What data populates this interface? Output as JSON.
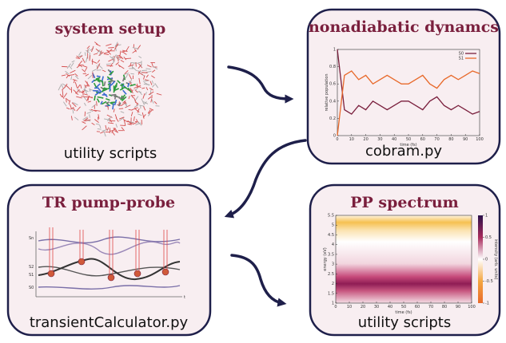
{
  "boxes": [
    {
      "title": "system setup",
      "caption": "utility scripts"
    },
    {
      "title": "nonadiabatic dynamcs",
      "caption": "cobram.py",
      "plot": {
        "type": "line",
        "x_label": "time (fs)",
        "y_label": "relative population",
        "x": [
          0,
          5,
          10,
          15,
          20,
          25,
          30,
          35,
          40,
          45,
          50,
          55,
          60,
          65,
          70,
          75,
          80,
          85,
          90,
          95,
          100
        ],
        "series": [
          {
            "name": "S0",
            "color": "#7a1f3d",
            "values": [
              1,
              0.3,
              0.25,
              0.35,
              0.3,
              0.4,
              0.35,
              0.3,
              0.35,
              0.4,
              0.4,
              0.35,
              0.3,
              0.4,
              0.45,
              0.35,
              0.3,
              0.35,
              0.3,
              0.25,
              0.28
            ]
          },
          {
            "name": "S1",
            "color": "#e8692a",
            "values": [
              0,
              0.7,
              0.75,
              0.65,
              0.7,
              0.6,
              0.65,
              0.7,
              0.65,
              0.6,
              0.6,
              0.65,
              0.7,
              0.6,
              0.55,
              0.65,
              0.7,
              0.65,
              0.7,
              0.75,
              0.72
            ]
          }
        ],
        "xlim": [
          0,
          100
        ],
        "xticks": [
          0,
          10,
          20,
          30,
          40,
          50,
          60,
          70,
          80,
          90,
          100
        ],
        "ylim": [
          0,
          1
        ],
        "yticks": [
          0,
          0.2,
          0.4,
          0.6,
          0.8,
          1
        ]
      }
    },
    {
      "title": "TR pump-probe",
      "caption": "transientCalculator.py",
      "labels": [
        "Sn",
        "S2",
        "S1",
        "S0",
        "t"
      ]
    },
    {
      "title": "PP spectrum",
      "caption": "utility scripts",
      "plot": {
        "type": "heatmap",
        "x_label": "time (fs)",
        "y_label": "energy (eV)",
        "colorbar_label": "intensity (arb. units)",
        "xlim": [
          0,
          100
        ],
        "xticks": [
          0,
          10,
          20,
          30,
          40,
          50,
          60,
          70,
          80,
          90,
          100
        ],
        "ylim": [
          1,
          5.5
        ],
        "yticks": [
          1,
          1.5,
          2,
          2.5,
          3,
          3.5,
          4,
          4.5,
          5,
          5.5
        ],
        "clim": [
          -1,
          1
        ],
        "cticks": [
          -1,
          -0.5,
          0,
          0.5,
          1
        ]
      }
    }
  ]
}
